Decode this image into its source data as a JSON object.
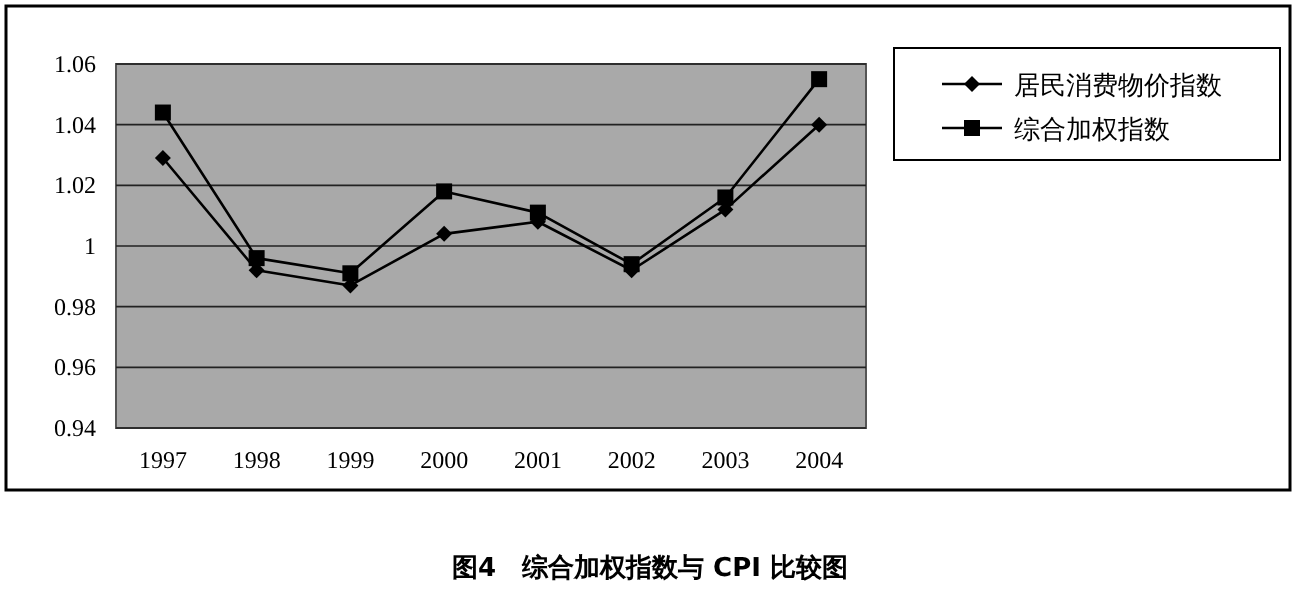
{
  "chart_data": {
    "type": "line",
    "title": "图4　综合加权指数与 CPI 比较图",
    "categories": [
      "1997",
      "1998",
      "1999",
      "2000",
      "2001",
      "2002",
      "2003",
      "2004"
    ],
    "series": [
      {
        "name": "居民消费物价指数",
        "color": "#000000",
        "marker": "diamond",
        "values": [
          1.029,
          0.992,
          0.987,
          1.004,
          1.008,
          0.992,
          1.012,
          1.04
        ]
      },
      {
        "name": "综合加权指数",
        "color": "#000000",
        "marker": "square",
        "values": [
          1.044,
          0.996,
          0.991,
          1.018,
          1.011,
          0.994,
          1.016,
          1.055
        ]
      }
    ],
    "ylim": [
      0.94,
      1.06
    ],
    "yticks": [
      0.94,
      0.96,
      0.98,
      1,
      1.02,
      1.04,
      1.06
    ],
    "grid": "y",
    "legend": "top right"
  }
}
